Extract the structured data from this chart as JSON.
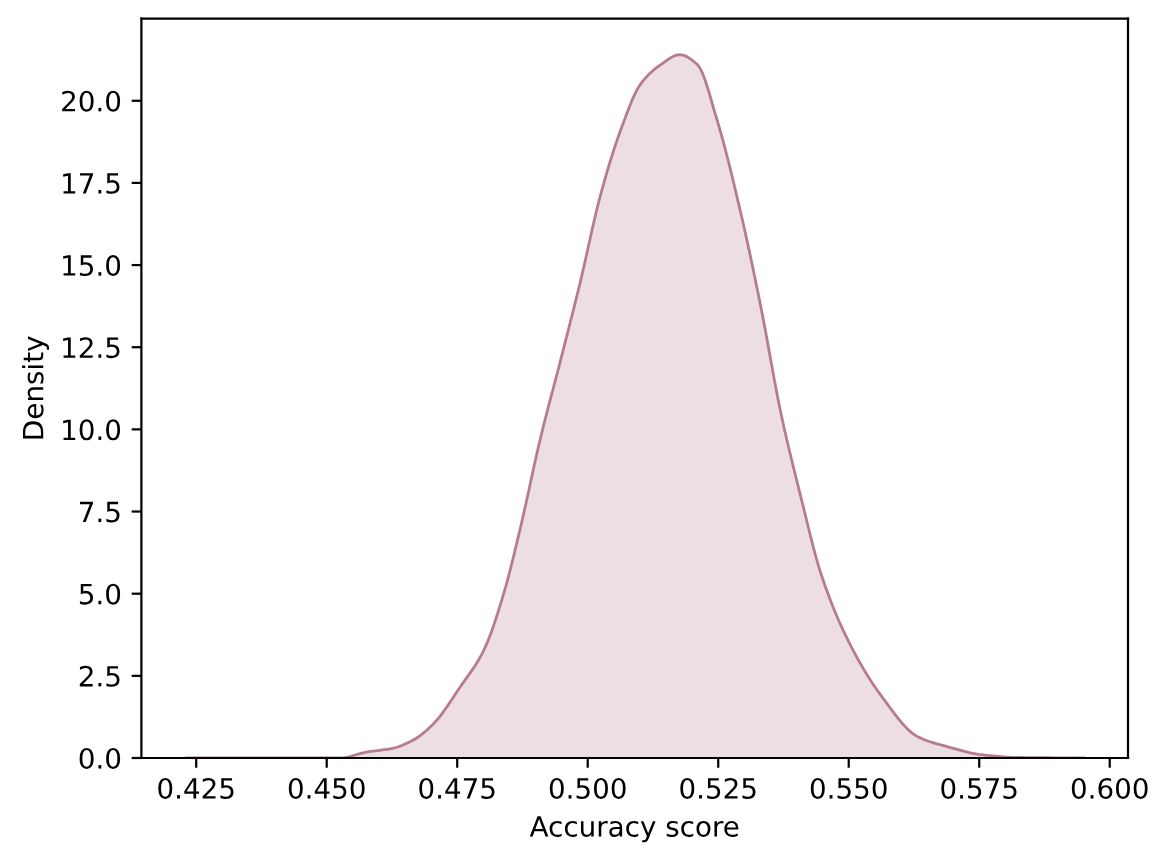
{
  "chart_data": {
    "type": "area",
    "xlabel": "Accuracy score",
    "ylabel": "Density",
    "series": [
      {
        "color": "#b77b8f",
        "x": [
          0.4231,
          0.4525,
          0.4576,
          0.4628,
          0.4666,
          0.4705,
          0.4756,
          0.4801,
          0.4839,
          0.4871,
          0.4909,
          0.4948,
          0.4986,
          0.5024,
          0.5063,
          0.5101,
          0.514,
          0.5176,
          0.521,
          0.5248,
          0.5293,
          0.5332,
          0.537,
          0.5409,
          0.5447,
          0.5498,
          0.5562,
          0.5632,
          0.569,
          0.5754,
          0.5818,
          0.595
        ],
        "values": [
          0,
          0,
          0.18,
          0.3,
          0.55,
          1.05,
          2.17,
          3.28,
          5.0,
          7.0,
          9.7,
          12.1,
          14.5,
          17.1,
          19.1,
          20.5,
          21.1,
          21.4,
          21.1,
          19.4,
          16.6,
          13.7,
          10.5,
          7.9,
          5.6,
          3.6,
          1.9,
          0.65,
          0.34,
          0.1,
          0.02,
          0
        ]
      }
    ],
    "xlim": [
      0.4145,
      0.6035
    ],
    "ylim": [
      0,
      22.5
    ],
    "xticks": [
      0.425,
      {
        "value": 0.45,
        "label": "0.450"
      },
      0.475,
      {
        "value": 0.5,
        "label": "0.500"
      },
      0.525,
      {
        "value": 0.55,
        "label": "0.550"
      },
      0.575,
      {
        "value": 0.6,
        "label": "0.600"
      }
    ],
    "yticks": [
      {
        "value": 0,
        "label": "0.0"
      },
      2.5,
      {
        "value": 5,
        "label": "5.0"
      },
      7.5,
      {
        "value": 10,
        "label": "10.0"
      },
      12.5,
      {
        "value": 15,
        "label": "15.0"
      },
      17.5,
      {
        "value": 20,
        "label": "20.0"
      }
    ]
  }
}
